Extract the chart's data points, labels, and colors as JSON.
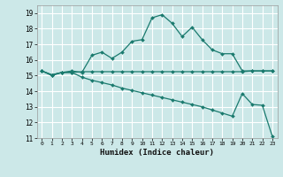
{
  "title": "",
  "xlabel": "Humidex (Indice chaleur)",
  "xlim": [
    -0.5,
    23.5
  ],
  "ylim": [
    11,
    19.5
  ],
  "yticks": [
    11,
    12,
    13,
    14,
    15,
    16,
    17,
    18,
    19
  ],
  "xticks": [
    0,
    1,
    2,
    3,
    4,
    5,
    6,
    7,
    8,
    9,
    10,
    11,
    12,
    13,
    14,
    15,
    16,
    17,
    18,
    19,
    20,
    21,
    22,
    23
  ],
  "bg_color": "#cce8e8",
  "grid_color": "#ffffff",
  "line_color": "#1a7a6e",
  "line1_x": [
    0,
    1,
    2,
    3,
    4,
    5,
    6,
    7,
    8,
    9,
    10,
    11,
    12,
    13,
    14,
    15,
    16,
    17,
    18,
    19,
    20,
    21,
    22,
    23
  ],
  "line1_y": [
    15.3,
    15.0,
    15.2,
    15.3,
    15.2,
    16.3,
    16.5,
    16.1,
    16.5,
    17.2,
    17.3,
    18.7,
    18.9,
    18.35,
    17.5,
    18.1,
    17.3,
    16.65,
    16.4,
    16.4,
    15.3,
    15.3,
    15.3,
    15.3
  ],
  "line2_x": [
    0,
    1,
    2,
    3,
    4,
    5,
    6,
    7,
    8,
    9,
    10,
    11,
    12,
    13,
    14,
    15,
    16,
    17,
    18,
    19,
    20,
    21,
    22,
    23
  ],
  "line2_y": [
    15.3,
    15.05,
    15.2,
    15.2,
    15.25,
    15.25,
    15.25,
    15.25,
    15.25,
    15.25,
    15.25,
    15.25,
    15.25,
    15.25,
    15.25,
    15.25,
    15.25,
    15.25,
    15.25,
    15.25,
    15.25,
    15.3,
    15.3,
    15.3
  ],
  "line3_x": [
    0,
    1,
    2,
    3,
    4,
    5,
    6,
    7,
    8,
    9,
    10,
    11,
    12,
    13,
    14,
    15,
    16,
    17,
    18,
    19,
    20,
    21,
    22,
    23
  ],
  "line3_y": [
    15.3,
    15.05,
    15.2,
    15.2,
    14.9,
    14.7,
    14.55,
    14.4,
    14.2,
    14.05,
    13.9,
    13.75,
    13.6,
    13.45,
    13.3,
    13.15,
    13.0,
    12.8,
    12.6,
    12.4,
    13.85,
    13.15,
    13.1,
    11.1
  ]
}
